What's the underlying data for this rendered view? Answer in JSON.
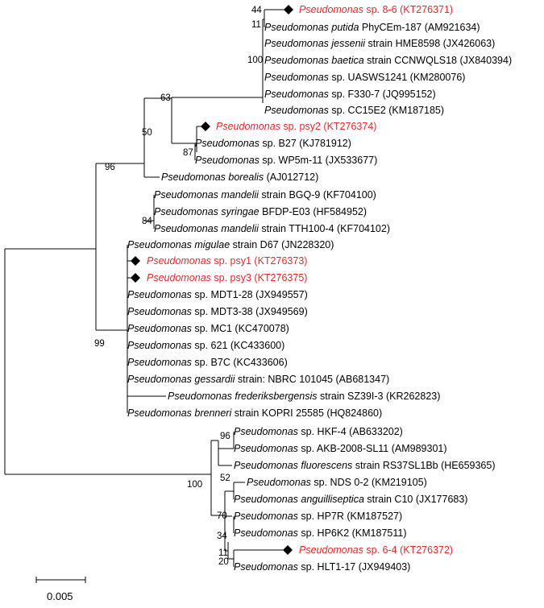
{
  "colors": {
    "default_text": "#000000",
    "highlight": "#e8262b",
    "branch": "#000000"
  },
  "highlight_marker": "filled-diamond",
  "taxa": [
    {
      "name": "Pseudomonas",
      "rest": " sp. 8-6 (KT276371)",
      "highlight": true
    },
    {
      "name": "Pseudomonas putida",
      "rest": " PhyCEm-187 (AM921634)",
      "highlight": false
    },
    {
      "name": "Pseudomonas jessenii",
      "rest": " strain HME8598 (JX426063)",
      "highlight": false
    },
    {
      "name": "Pseudomonas baetica",
      "rest": " strain CCNWQLS18 (JX840394)",
      "highlight": false
    },
    {
      "name": "Pseudomonas",
      "rest": " sp. UASWS1241 (KM280076)",
      "highlight": false
    },
    {
      "name": "Pseudomonas",
      "rest": " sp. F330-7 (JQ995152)",
      "highlight": false
    },
    {
      "name": "Pseudomonas",
      "rest": " sp. CC15E2 (KM187185)",
      "highlight": false
    },
    {
      "name": "Pseudomonas",
      "rest": " sp. psy2 (KT276374)",
      "highlight": true
    },
    {
      "name": "Pseudomonas",
      "rest": " sp. B27 (KJ781912)",
      "highlight": false
    },
    {
      "name": "Pseudomonas",
      "rest": " sp. WP5m-11 (JX533677)",
      "highlight": false
    },
    {
      "name": "Pseudomonas borealis",
      "rest": " (AJ012712)",
      "highlight": false
    },
    {
      "name": "Pseudomonas mandelii",
      "rest": " strain BGQ-9 (KF704100)",
      "highlight": false
    },
    {
      "name": "Pseudomonas syringae",
      "rest": " BFDP-E03 (HF584952)",
      "highlight": false
    },
    {
      "name": "Pseudomonas mandelii",
      "rest": " strain TTH100-4 (KF704102)",
      "highlight": false
    },
    {
      "name": "Pseudomonas migulae",
      "rest": " strain D67 (JN228320)",
      "highlight": false
    },
    {
      "name": "Pseudomonas",
      "rest": " sp. psy1 (KT276373)",
      "highlight": true
    },
    {
      "name": "Pseudomonas",
      "rest": " sp. psy3 (KT276375)",
      "highlight": true
    },
    {
      "name": "Pseudomonas",
      "rest": " sp. MDT1-28 (JX949557)",
      "highlight": false
    },
    {
      "name": "Pseudomonas",
      "rest": " sp. MDT3-38 (JX949569)",
      "highlight": false
    },
    {
      "name": "Pseudomonas",
      "rest": " sp. MC1 (KC470078)",
      "highlight": false
    },
    {
      "name": "Pseudomonas",
      "rest": " sp. 621 (KC433600)",
      "highlight": false
    },
    {
      "name": "Pseudomonas",
      "rest": " sp. B7C (KC433606)",
      "highlight": false
    },
    {
      "name": "Pseudomonas gessardii",
      "rest": " strain:  NBRC 101045 (AB681347)",
      "highlight": false
    },
    {
      "name": "Pseudomonas frederiksbergensis",
      "rest": " strain SZ39I-3 (KR262823)",
      "highlight": false
    },
    {
      "name": "Pseudomonas brenneri",
      "rest": " strain KOPRI 25585 (HQ824860)",
      "highlight": false
    },
    {
      "name": "Pseudomonas",
      "rest": " sp. HKF-4 (AB633202)",
      "highlight": false
    },
    {
      "name": "Pseudomonas",
      "rest": " sp. AKB-2008-SL11 (AM989301)",
      "highlight": false
    },
    {
      "name": "Pseudomonas fluorescens",
      "rest": " strain RS37SL1Bb (HE659365)",
      "highlight": false
    },
    {
      "name": "Pseudomonas",
      "rest": " sp. NDS 0-2 (KM219105)",
      "highlight": false
    },
    {
      "name": "Pseudomonas anguilliseptica",
      "rest": " strain C10 (JX177683)",
      "highlight": false
    },
    {
      "name": "Pseudomonas",
      "rest": " sp. HP7R (KM187527)",
      "highlight": false
    },
    {
      "name": "Pseudomonas",
      "rest": " sp. HP6K2 (KM187511)",
      "highlight": false
    },
    {
      "name": "Pseudomonas",
      "rest": " sp. 6-4 (KT276372)",
      "highlight": true
    },
    {
      "name": "Pseudomonas",
      "rest": " sp. HLT1-17 (JX949403)",
      "highlight": false
    }
  ],
  "bootstrap_values": [
    "44",
    "11",
    "100",
    "63",
    "50",
    "87",
    "96",
    "84",
    "99",
    "96",
    "100",
    "52",
    "70",
    "34",
    "11",
    "20"
  ],
  "scale_bar": {
    "label": "0.005"
  }
}
